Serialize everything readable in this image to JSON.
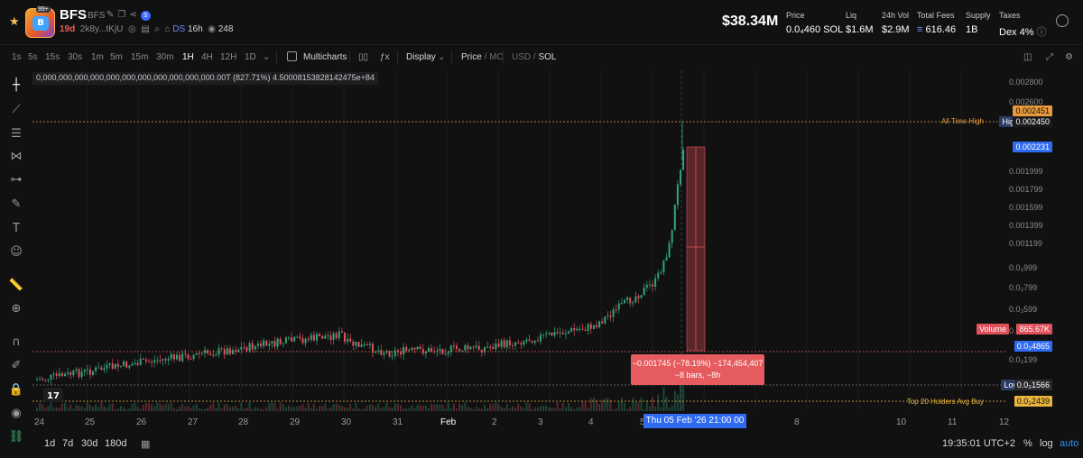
{
  "header": {
    "ticker": "BFS",
    "ticker_sub": "BFS",
    "badge": "99+",
    "age": "19d",
    "address": "2k8y...tKjU",
    "ds_label": "DS",
    "ds_time": "16h",
    "viewers": "248",
    "market_cap": "$38.34M",
    "stats": [
      {
        "label": "Price",
        "value": "0.0₄460 SOL"
      },
      {
        "label": "Liq",
        "value": "$1.6M"
      },
      {
        "label": "24h Vol",
        "value": "$2.9M"
      },
      {
        "label": "Total Fees",
        "value": "616.46",
        "sol_icon": "≡"
      },
      {
        "label": "Supply",
        "value": "1B"
      },
      {
        "label": "Taxes",
        "value": "Dex 4%"
      }
    ]
  },
  "toolbar": {
    "timeframes": [
      "1s",
      "5s",
      "15s",
      "30s",
      "1m",
      "5m",
      "15m",
      "30m",
      "1H",
      "4H",
      "12H",
      "1D"
    ],
    "active_timeframe": "1H",
    "multicharts": "Multicharts",
    "display": "Display",
    "price": "Price",
    "mc": "MC",
    "usd": "USD",
    "sol": "SOL"
  },
  "overflow_text": "0,000,000,000,000,000,000,000,000,000,000,000.00T (827.71%) 4.50008153828142475e+84",
  "y_axis": {
    "ticks": [
      "0.002800",
      "0.002600",
      "0.002400",
      "0.001999",
      "0.001799",
      "0.001599",
      "0.001399",
      "0.001199",
      "0.0₃999",
      "0.0₃799",
      "0.0₃599",
      "0.0₃399",
      "0.0₃199"
    ],
    "tags": {
      "high_line_value": "0.002451",
      "high_label": "High",
      "high_value": "0.002450",
      "current_value": "0.002231",
      "volume_label": "Volume",
      "volume_value": "865.67K",
      "measure_value": "0.0₃4865",
      "low_label": "Low",
      "low_value": "0.0₃1566",
      "holders_value": "0.0₃2439"
    },
    "lines": {
      "all_time_high": "All Time High",
      "top_holders": "Top 20 Holders Avg Buy"
    }
  },
  "x_axis": {
    "labels": [
      "24",
      "25",
      "26",
      "27",
      "28",
      "29",
      "30",
      "31",
      "Feb",
      "2",
      "3",
      "4",
      "5",
      "8",
      "10",
      "11",
      "12"
    ],
    "crosshair": "Thu 05 Feb '26   21:00",
    "crosshair_tail": "00"
  },
  "measure": {
    "line1": "−0.001745 (−78.19%) −174,454,407",
    "line2": "−8 bars, −8h"
  },
  "bottom": {
    "ranges": [
      "1d",
      "7d",
      "30d",
      "180d"
    ],
    "clock": "19:35:01 UTC+2",
    "pct": "%",
    "log": "log",
    "auto": "auto"
  },
  "colors": {
    "up": "#2fa57a",
    "down": "#e0505a",
    "accent": "#2f6bf0",
    "ath": "#e89a3c"
  }
}
